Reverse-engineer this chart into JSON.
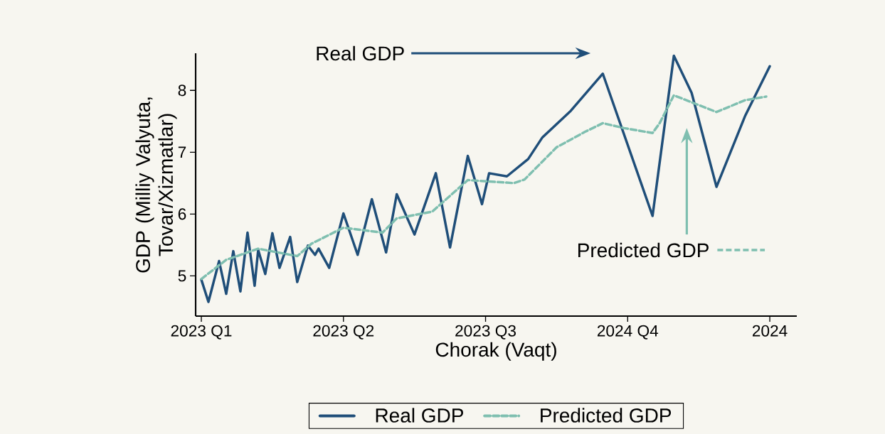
{
  "chart_data": {
    "type": "line",
    "xlabel": "Chorak (Vaqt)",
    "ylabel": "GDP (Milliy Valyuta, Tovar/Xizmatlar)",
    "categories": [
      "2023 Q1",
      null,
      null,
      null,
      null,
      null,
      null,
      null,
      null,
      null,
      null,
      null,
      null,
      null,
      null,
      null,
      null,
      null,
      null,
      null,
      null,
      null,
      null,
      null,
      null,
      null,
      null,
      null,
      null,
      null,
      null,
      null,
      null,
      null,
      null,
      null,
      null,
      null,
      null,
      null,
      "2023 Q2",
      null,
      null,
      null,
      null,
      null,
      null,
      null,
      null,
      null,
      null,
      null,
      null,
      null,
      null,
      null,
      null,
      null,
      null,
      null,
      null,
      null,
      null,
      null,
      null,
      null,
      null,
      null,
      null,
      null,
      null,
      null,
      null,
      null,
      null,
      null,
      null,
      null,
      null,
      null,
      "2023 Q3",
      null,
      null,
      null,
      null,
      null,
      null,
      null,
      null,
      null,
      null,
      null,
      null,
      null,
      null,
      null,
      null,
      null,
      null,
      null,
      null,
      null,
      null,
      null,
      null,
      null,
      null,
      null,
      null,
      null,
      null,
      null,
      null,
      null,
      null,
      null,
      null,
      null,
      null,
      null,
      "2024 Q4",
      null,
      null,
      null,
      null,
      null,
      null,
      null,
      null,
      null,
      null,
      null,
      null,
      null,
      null,
      null,
      null,
      null,
      null,
      null,
      null,
      null,
      null,
      null,
      null,
      null,
      null,
      null,
      null,
      null,
      null,
      null,
      null,
      null,
      null,
      null,
      null,
      null,
      null,
      null,
      "2024"
    ],
    "ylim": [
      4.35,
      8.6
    ],
    "yticks": [
      5,
      6,
      7,
      8
    ],
    "series": [
      {
        "name": "Real GDP",
        "color": "#1f4e79",
        "line_style": "solid",
        "values": [
          4.94,
          null,
          4.58,
          null,
          null,
          5.24,
          null,
          4.71,
          null,
          5.4,
          null,
          4.75,
          null,
          5.7,
          null,
          4.84,
          5.42,
          null,
          5.03,
          null,
          5.69,
          null,
          5.13,
          null,
          null,
          5.63,
          null,
          4.9,
          null,
          null,
          5.49,
          null,
          5.34,
          5.44,
          null,
          null,
          5.13,
          null,
          null,
          null,
          6.01,
          null,
          null,
          null,
          5.34,
          null,
          null,
          null,
          6.24,
          null,
          null,
          null,
          5.38,
          null,
          null,
          6.32,
          null,
          null,
          null,
          null,
          5.67,
          null,
          null,
          null,
          null,
          null,
          6.66,
          null,
          null,
          null,
          5.46,
          null,
          null,
          null,
          null,
          6.94,
          null,
          null,
          null,
          6.16,
          null,
          6.66,
          null,
          null,
          null,
          null,
          6.61,
          null,
          null,
          null,
          null,
          null,
          6.89,
          null,
          null,
          null,
          7.24,
          null,
          null,
          null,
          null,
          null,
          null,
          null,
          7.67,
          null,
          null,
          null,
          null,
          null,
          null,
          null,
          null,
          8.27,
          null,
          null,
          null,
          null,
          null,
          null,
          null,
          null,
          null,
          null,
          null,
          null,
          null,
          5.97,
          null,
          null,
          null,
          null,
          null,
          8.56,
          null,
          null,
          null,
          null,
          7.96,
          null,
          null,
          null,
          null,
          null,
          null,
          6.44,
          null,
          null,
          null,
          null,
          null,
          null,
          null,
          7.58,
          null,
          null,
          null,
          null,
          null,
          null,
          8.39
        ]
      },
      {
        "name": "Predicted GDP",
        "color": "#7fbfb0",
        "line_style": "dashed",
        "values": [
          4.95,
          null,
          null,
          null,
          null,
          null,
          null,
          5.26,
          null,
          null,
          null,
          null,
          null,
          null,
          null,
          null,
          5.44,
          null,
          null,
          null,
          null,
          null,
          null,
          null,
          null,
          null,
          null,
          5.32,
          null,
          null,
          null,
          5.52,
          null,
          null,
          null,
          null,
          null,
          null,
          null,
          null,
          5.78,
          null,
          null,
          null,
          null,
          null,
          null,
          null,
          null,
          null,
          null,
          5.7,
          null,
          null,
          null,
          5.93,
          null,
          null,
          null,
          null,
          null,
          null,
          null,
          null,
          null,
          6.04,
          null,
          null,
          null,
          null,
          null,
          null,
          null,
          null,
          null,
          6.55,
          null,
          null,
          null,
          null,
          null,
          null,
          null,
          null,
          null,
          null,
          null,
          null,
          6.5,
          null,
          null,
          6.56,
          null,
          null,
          null,
          null,
          null,
          null,
          null,
          null,
          7.08,
          null,
          null,
          null,
          null,
          null,
          null,
          null,
          7.33,
          null,
          null,
          null,
          null,
          7.47,
          null,
          null,
          null,
          null,
          null,
          7.39,
          null,
          null,
          null,
          null,
          null,
          null,
          null,
          7.31,
          null,
          7.47,
          null,
          null,
          null,
          7.92,
          null,
          null,
          null,
          null,
          null,
          null,
          null,
          null,
          null,
          null,
          null,
          7.65,
          null,
          null,
          null,
          null,
          null,
          null,
          null,
          7.84,
          null,
          null,
          null,
          null,
          null,
          7.9,
          null
        ]
      }
    ],
    "annotations": [
      "Real GDP",
      "Predicted GDP"
    ],
    "marker": "none",
    "grid": false,
    "legend": "bottom"
  }
}
